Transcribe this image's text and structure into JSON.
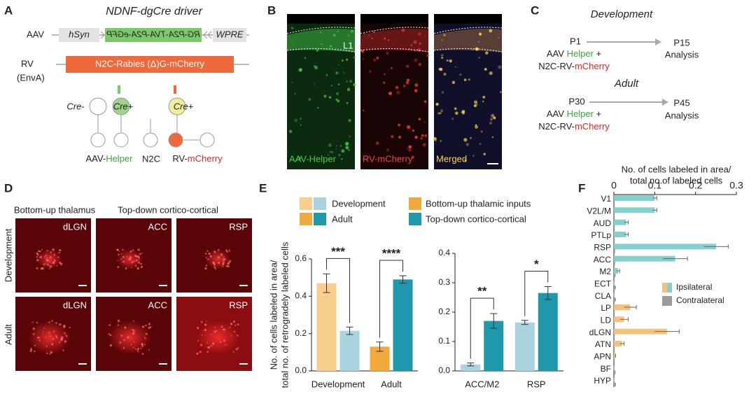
{
  "panels": {
    "A": {
      "letter": "A",
      "title": "NDNF-dgCre driver",
      "aav": "AAV",
      "hsyn": "hSyn",
      "insert": "RG-P2A-TVA-P2A-eGFP",
      "wpre": "WPRE",
      "rv": "RV",
      "envA": "(EnvA)",
      "rabies": "N2C-Rabies (Δ)G-mCherry",
      "cre_minus": "Cre-",
      "cre_plus_1": "Cre+",
      "cre_plus_2": "Cre+",
      "helper_prefix": "AAV-",
      "helper": "Helper",
      "n2c": "N2C",
      "rv_prefix": "RV-",
      "mcherry": "mCherry"
    },
    "B": {
      "letter": "B",
      "layer": "L1",
      "channels": [
        "AAV-Helper",
        "RV-mCherry",
        "Merged"
      ]
    },
    "C": {
      "letter": "C",
      "development": {
        "heading": "Development",
        "start": "P1",
        "end": "P15",
        "end_label": "Analysis",
        "line1": [
          "AAV",
          "Helper",
          "+"
        ],
        "line2": [
          "N2C-RV-",
          "mCherry"
        ]
      },
      "adult": {
        "heading": "Adult",
        "start": "P30",
        "end": "P45",
        "end_label": "Analysis",
        "line1": [
          "AAV",
          "Helper",
          "+"
        ],
        "line2": [
          "N2C-RV-",
          "mCherry"
        ]
      }
    },
    "D": {
      "letter": "D",
      "columns": [
        "Bottom-up thalamus",
        "Top-down cortico-cortical"
      ],
      "rows": [
        "Development",
        "Adult"
      ],
      "labels": [
        [
          "dLGN",
          "ACC",
          "RSP"
        ],
        [
          "dLGN",
          "ACC",
          "RSP"
        ]
      ]
    },
    "E": {
      "letter": "E"
    },
    "F": {
      "letter": "F"
    }
  },
  "chart_data": [
    {
      "type": "bar",
      "y_label": [
        "No. of cells labeled in area/",
        "total no. of retrogradely labeled cells"
      ],
      "categories": [
        "Development",
        "Adult"
      ],
      "series": [
        {
          "name": "Bottom-up thalamic inputs",
          "colors": [
            "#f9cf8e",
            "#f2a93b"
          ],
          "values": [
            0.47,
            0.13
          ],
          "errors": [
            0.05,
            0.025
          ]
        },
        {
          "name": "Top-down cortico-cortical",
          "colors": [
            "#a9d3df",
            "#1f97ad"
          ],
          "values": [
            0.215,
            0.49
          ],
          "errors": [
            0.02,
            0.02
          ]
        }
      ],
      "significance": [
        "***",
        "****"
      ],
      "ylim": [
        0,
        0.6
      ],
      "yticks": [
        {
          "value": 0,
          "label": "0.0"
        },
        0.2,
        0.4,
        0.6
      ]
    },
    {
      "type": "bar",
      "categories": [
        "ACC/M2",
        "RSP"
      ],
      "series": [
        {
          "name": "Development",
          "color": "#a9d3df",
          "values": [
            0.022,
            0.165
          ],
          "errors": [
            0.005,
            0.007
          ]
        },
        {
          "name": "Adult",
          "color": "#1f97ad",
          "values": [
            0.17,
            0.265
          ],
          "errors": [
            0.025,
            0.022
          ]
        }
      ],
      "significance": [
        "**",
        "*"
      ],
      "ylim": [
        0,
        0.4
      ],
      "yticks": [
        {
          "value": 0,
          "label": "0.0"
        },
        0.1,
        0.2,
        0.3,
        0.4
      ]
    },
    {
      "type": "hbar",
      "x_label": [
        "No. of cells labeled in area/",
        "total no.of labeled cells"
      ],
      "categories": [
        "V1",
        "V2L/M",
        "AUD",
        "PTLp",
        "RSP",
        "ACC",
        "M2",
        "ECT",
        "CLA",
        "LP",
        "LD",
        "dLGN",
        "ATN",
        "APN",
        "BF",
        "HYP"
      ],
      "series": [
        {
          "name": "Ipsilateral",
          "colors": [
            "#86cfd0",
            "#86cfd0",
            "#86cfd0",
            "#86cfd0",
            "#86cfd0",
            "#86cfd0",
            "#86cfd0",
            "#86cfd0",
            "#86cfd0",
            "#f6c27b",
            "#f6c27b",
            "#f6c27b",
            "#f6c27b",
            "#f6c27b",
            "#f6c27b",
            "#f6c27b"
          ],
          "values": [
            0.1,
            0.1,
            0.03,
            0.03,
            0.25,
            0.15,
            0.01,
            0,
            0,
            0.04,
            0.025,
            0.13,
            0.02,
            0.003,
            0,
            0
          ],
          "errors": [
            0.005,
            0.005,
            0.005,
            0.005,
            0.03,
            0.03,
            0.004,
            0,
            0,
            0.015,
            0.01,
            0.03,
            0.005,
            0.001,
            0,
            0
          ]
        },
        {
          "name": "Contralateral",
          "color": "#9a9a9a",
          "values": [
            0.002,
            0.002,
            0.002,
            0.002,
            0.003,
            0.003,
            0.004,
            0.005,
            0.005,
            0.002,
            0.002,
            0.002,
            0.002,
            0.002,
            0.004,
            0.005
          ]
        }
      ],
      "xlim": [
        0,
        0.3
      ],
      "xticks": [
        0,
        0.1,
        0.2,
        0.3
      ]
    }
  ]
}
